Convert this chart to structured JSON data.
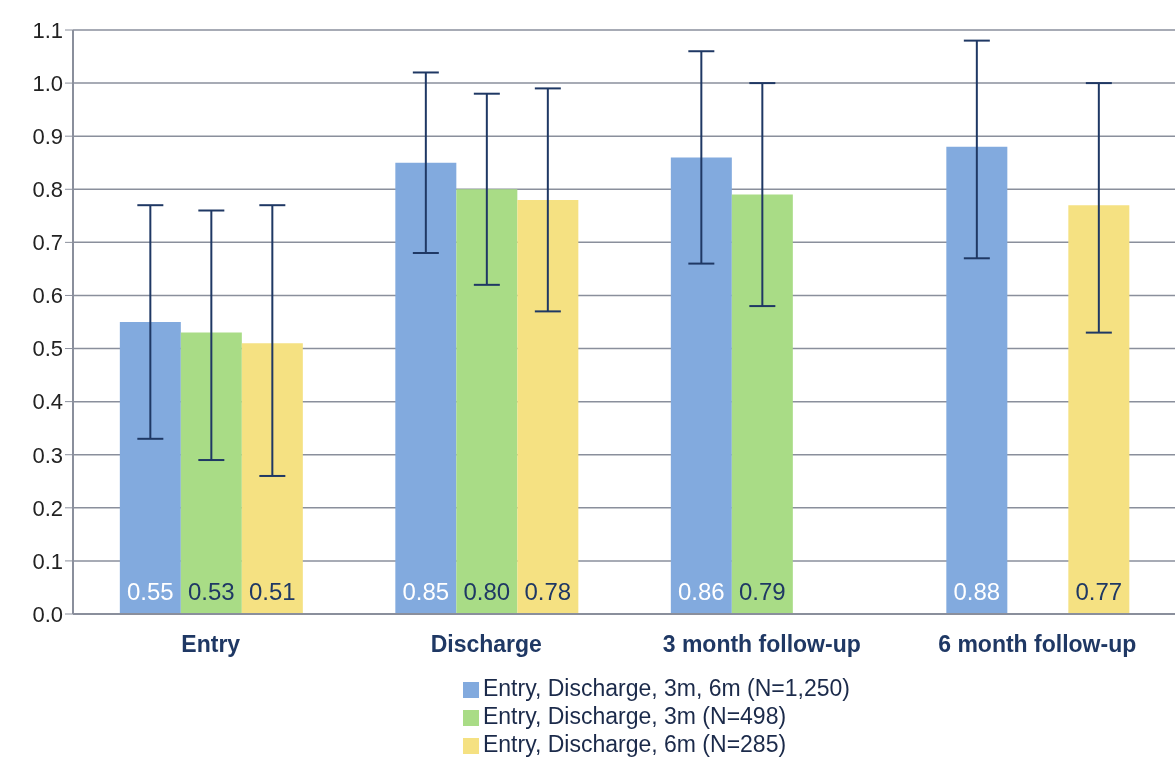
{
  "chart_data": {
    "type": "bar",
    "categories": [
      "Entry",
      "Discharge",
      "3 month follow-up",
      "6 month follow-up"
    ],
    "series": [
      {
        "name": "Entry, Discharge, 3m, 6m (N=1,250)",
        "color": "#82aade",
        "values": [
          0.55,
          0.85,
          0.86,
          0.88
        ],
        "value_labels": [
          "0.55",
          "0.85",
          "0.86",
          "0.88"
        ],
        "errors": [
          [
            0.33,
            0.77
          ],
          [
            0.68,
            1.02
          ],
          [
            0.66,
            1.06
          ],
          [
            0.67,
            1.08
          ]
        ]
      },
      {
        "name": "Entry, Discharge, 3m (N=498)",
        "color": "#a9dc86",
        "values": [
          0.53,
          0.8,
          0.79,
          null
        ],
        "value_labels": [
          "0.53",
          "0.80",
          "0.79",
          null
        ],
        "errors": [
          [
            0.29,
            0.76
          ],
          [
            0.62,
            0.98
          ],
          [
            0.58,
            1.0
          ],
          null
        ]
      },
      {
        "name": "Entry, Discharge, 6m (N=285)",
        "color": "#f5e182",
        "values": [
          0.51,
          0.78,
          null,
          0.77
        ],
        "value_labels": [
          "0.51",
          "0.78",
          null,
          "0.77"
        ],
        "errors": [
          [
            0.26,
            0.77
          ],
          [
            0.57,
            0.99
          ],
          null,
          [
            0.53,
            1.0
          ]
        ]
      }
    ],
    "ylim": [
      0,
      1.1
    ],
    "yticks": [
      {
        "value": 0,
        "label": "0.0"
      },
      0.1,
      0.2,
      0.3,
      0.4,
      0.5,
      0.6,
      0.7,
      0.8,
      0.9,
      {
        "value": 1,
        "label": "1.0"
      },
      1.1
    ],
    "grid": "y",
    "legend": "bottom"
  }
}
